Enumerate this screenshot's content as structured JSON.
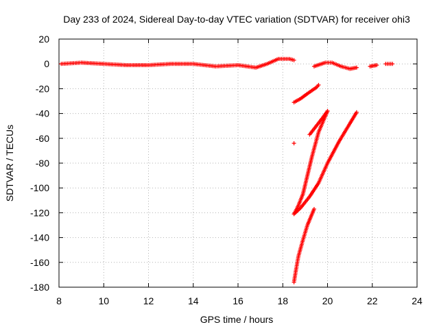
{
  "chart_data": {
    "type": "scatter",
    "title": "Day 233 of 2024, Sidereal Day-to-day VTEC variation (SDTVAR) for receiver ohi3",
    "xlabel": "GPS time / hours",
    "ylabel": "SDTVAR / TECUs",
    "xlim": [
      8,
      24
    ],
    "ylim": [
      -180,
      20
    ],
    "xticks": [
      8,
      10,
      12,
      14,
      16,
      18,
      20,
      22,
      24
    ],
    "yticks": [
      20,
      0,
      -20,
      -40,
      -60,
      -80,
      -100,
      -120,
      -140,
      -160,
      -180
    ],
    "grid": true,
    "marker": "+",
    "marker_color": "#ff0000",
    "series": [
      {
        "segments": [
          {
            "x": [
              8.1,
              9.0,
              10.0,
              11.0,
              12.0,
              13.0,
              14.0,
              15.0,
              16.0,
              16.8,
              17.3,
              17.8,
              18.3,
              18.5
            ],
            "y": [
              0,
              1,
              0,
              -1,
              -1,
              0,
              0,
              -2,
              -1,
              -3,
              0,
              4,
              4,
              3
            ]
          },
          {
            "x": [
              19.4,
              19.9,
              20.2,
              20.6,
              21.0,
              21.3
            ],
            "y": [
              -2,
              1,
              1,
              -2,
              -4,
              -3
            ]
          },
          {
            "x": [
              21.9,
              22.2
            ],
            "y": [
              -2,
              -1
            ]
          },
          {
            "x": [
              22.6,
              22.9
            ],
            "y": [
              0,
              0
            ]
          },
          {
            "x": [
              18.5,
              18.8,
              19.1,
              19.5,
              19.6
            ],
            "y": [
              -31,
              -28,
              -24,
              -19,
              -17
            ]
          },
          {
            "x": [
              18.5
            ],
            "y": [
              -64
            ]
          },
          {
            "x": [
              18.5,
              18.6,
              18.7,
              18.9,
              19.1,
              19.4
            ],
            "y": [
              -176,
              -165,
              -155,
              -142,
              -130,
              -117
            ]
          },
          {
            "x": [
              18.5,
              18.7,
              18.9,
              19.1,
              19.3,
              19.6,
              20.0
            ],
            "y": [
              -121,
              -114,
              -105,
              -90,
              -75,
              -55,
              -38
            ]
          },
          {
            "x": [
              19.2,
              19.5,
              19.8,
              20.0
            ],
            "y": [
              -57,
              -50,
              -43,
              -38
            ]
          },
          {
            "x": [
              18.5,
              18.8,
              19.2,
              19.6,
              20.0,
              20.5,
              21.0,
              21.3
            ],
            "y": [
              -121,
              -116,
              -107,
              -96,
              -80,
              -63,
              -48,
              -39
            ]
          }
        ]
      }
    ]
  }
}
